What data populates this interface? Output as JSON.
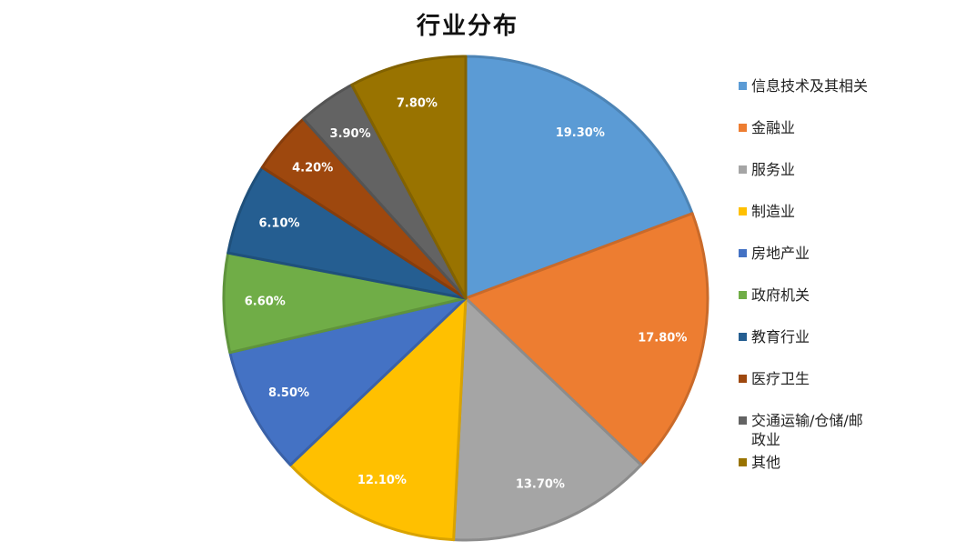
{
  "chart_data": {
    "type": "pie",
    "title": "行业分布",
    "slices": [
      {
        "label": "信息技术及其相关",
        "value": 19.3,
        "display": "19.30%",
        "color": "#5B9BD5"
      },
      {
        "label": "金融业",
        "value": 17.8,
        "display": "17.80%",
        "color": "#ED7D31"
      },
      {
        "label": "服务业",
        "value": 13.7,
        "display": "13.70%",
        "color": "#A5A5A5"
      },
      {
        "label": "制造业",
        "value": 12.1,
        "display": "12.10%",
        "color": "#FFC000"
      },
      {
        "label": "房地产业",
        "value": 8.5,
        "display": "8.50%",
        "color": "#4472C4"
      },
      {
        "label": "政府机关",
        "value": 6.6,
        "display": "6.60%",
        "color": "#70AD47"
      },
      {
        "label": "教育行业",
        "value": 6.1,
        "display": "6.10%",
        "color": "#255E91"
      },
      {
        "label": "医疗卫生",
        "value": 4.2,
        "display": "4.20%",
        "color": "#9E480E"
      },
      {
        "label": "交通运输/仓储/邮政业",
        "value": 3.9,
        "display": "3.90%",
        "color": "#636363"
      },
      {
        "label": "其他",
        "value": 7.8,
        "display": "7.80%",
        "color": "#997300"
      }
    ],
    "legend_position": "right"
  }
}
